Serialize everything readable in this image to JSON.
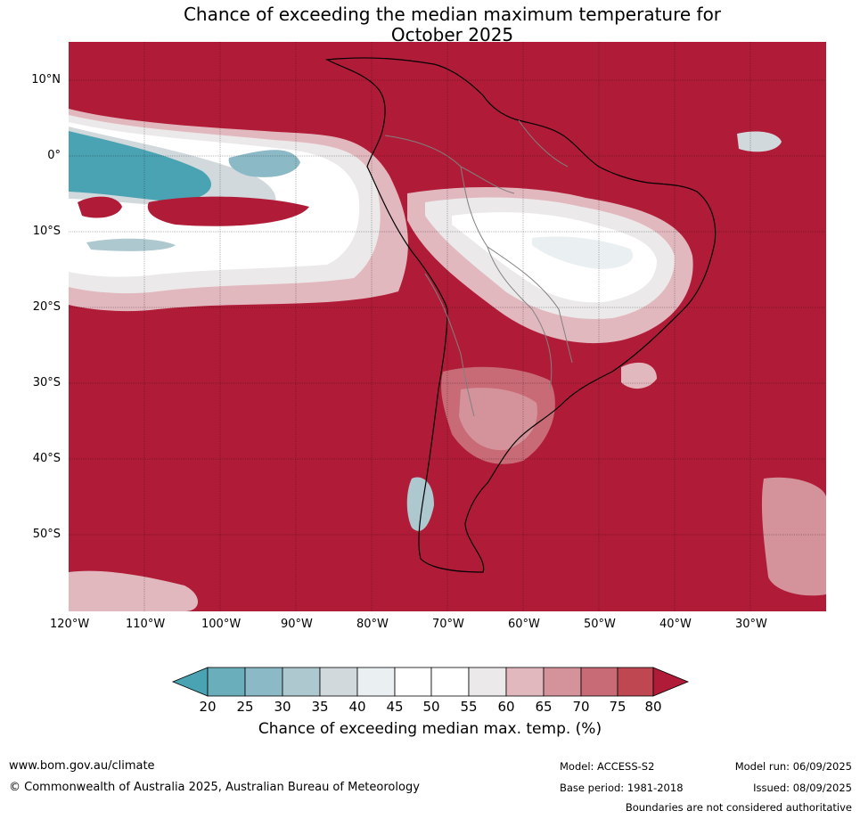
{
  "title": {
    "line1": "Chance of exceeding the median maximum temperature for",
    "line2": "October 2025"
  },
  "map": {
    "region": "South America and surrounding oceans",
    "lon_range": [
      -120,
      -20
    ],
    "lat_range": [
      -60,
      15
    ],
    "gridlines": true,
    "lat_ticks": [
      "10°N",
      "0°",
      "10°S",
      "20°S",
      "30°S",
      "40°S",
      "50°S"
    ],
    "lon_ticks": [
      "120°W",
      "110°W",
      "100°W",
      "90°W",
      "80°W",
      "70°W",
      "60°W",
      "50°W",
      "40°W",
      "30°W"
    ],
    "dominant_category": "80"
  },
  "colorbar": {
    "labels": [
      "20",
      "25",
      "30",
      "35",
      "40",
      "45",
      "50",
      "55",
      "60",
      "65",
      "70",
      "75",
      "80"
    ],
    "colors": {
      "below_20": "#4aa3b3",
      "20_25": "#6aadbb",
      "25_30": "#8bb9c6",
      "30_35": "#aec8d0",
      "35_40": "#d1d9dc",
      "40_45": "#eaf0f2",
      "45_50": "#ffffff",
      "50_55": "#ffffff",
      "55_60": "#ebe9ea",
      "60_65": "#e2b8bf",
      "65_70": "#d4929b",
      "70_75": "#c86b76",
      "75_80": "#bf4752",
      "above_80": "#b01c37"
    },
    "title": "Chance of exceeding median max. temp. (%)"
  },
  "footer": {
    "website": "www.bom.gov.au/climate",
    "copyright": "© Commonwealth of Australia 2025, Australian Bureau of Meteorology",
    "model": "Model: ACCESS-S2",
    "base_period": "Base period: 1981-2018",
    "model_run": "Model run: 06/09/2025",
    "issued": "Issued: 08/09/2025",
    "disclaimer": "Boundaries are not considered authoritative"
  }
}
